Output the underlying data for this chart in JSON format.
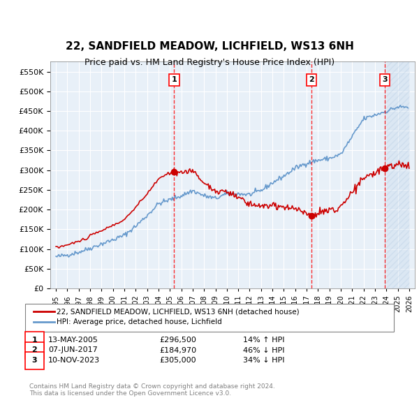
{
  "title": "22, SANDFIELD MEADOW, LICHFIELD, WS13 6NH",
  "subtitle": "Price paid vs. HM Land Registry's House Price Index (HPI)",
  "transactions": [
    {
      "num": 1,
      "date": "13-MAY-2005",
      "year": 2005.37,
      "price": 296500,
      "pct": "14%",
      "dir": "↑"
    },
    {
      "num": 2,
      "date": "07-JUN-2017",
      "year": 2017.44,
      "price": 184970,
      "pct": "46%",
      "dir": "↓"
    },
    {
      "num": 3,
      "date": "10-NOV-2023",
      "year": 2023.85,
      "price": 305000,
      "pct": "34%",
      "dir": "↓"
    }
  ],
  "legend_property": "22, SANDFIELD MEADOW, LICHFIELD, WS13 6NH (detached house)",
  "legend_hpi": "HPI: Average price, detached house, Lichfield",
  "footer1": "Contains HM Land Registry data © Crown copyright and database right 2024.",
  "footer2": "This data is licensed under the Open Government Licence v3.0.",
  "ylim": [
    0,
    575000
  ],
  "xlim": [
    1994.5,
    2026.5
  ],
  "yticks": [
    0,
    50000,
    100000,
    150000,
    200000,
    250000,
    300000,
    350000,
    400000,
    450000,
    500000,
    550000
  ],
  "ytick_labels": [
    "£0",
    "£50K",
    "£100K",
    "£150K",
    "£200K",
    "£250K",
    "£300K",
    "£350K",
    "£400K",
    "£450K",
    "£500K",
    "£550K"
  ],
  "property_color": "#cc0000",
  "hpi_color": "#aac4e0",
  "hpi_color_line": "#6699cc",
  "background_color": "#e8f0f8",
  "hatch_color": "#c0d4e8"
}
